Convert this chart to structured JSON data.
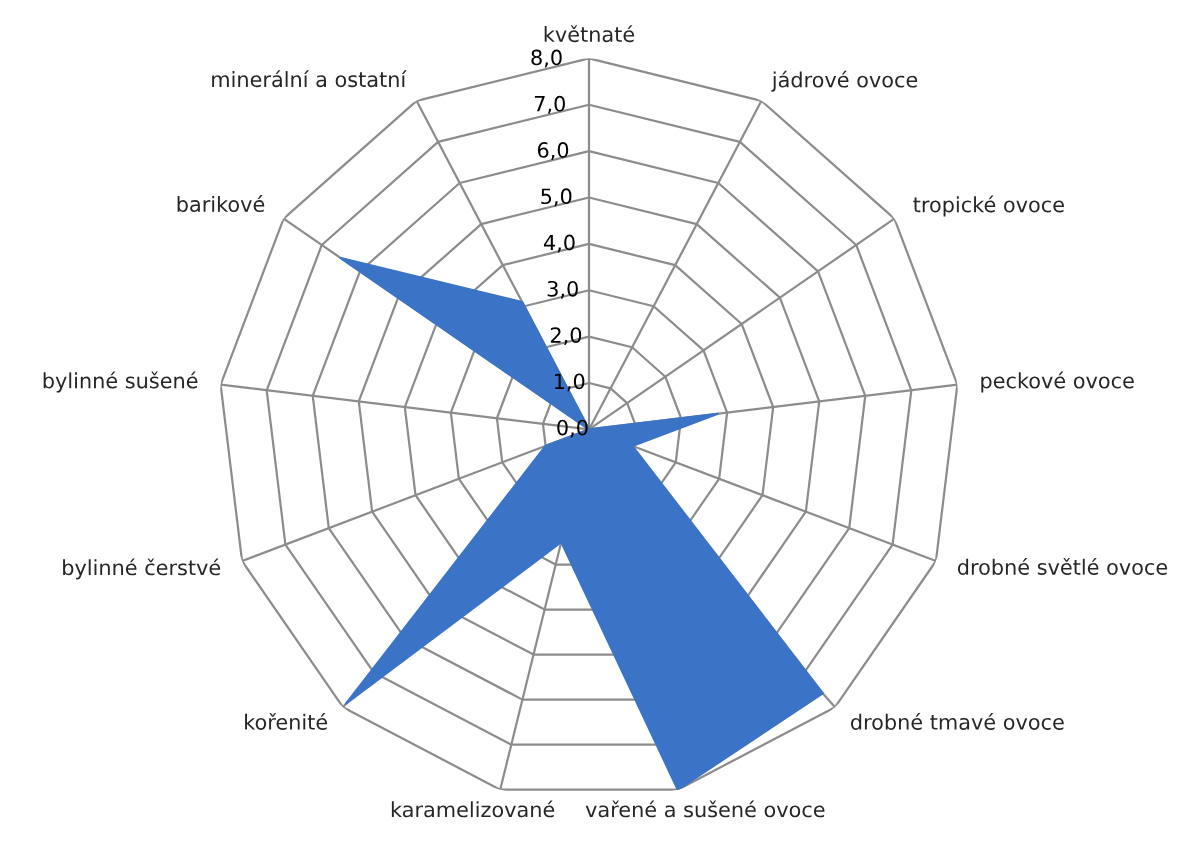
{
  "chart_data": {
    "type": "radar",
    "categories": [
      "květnaté",
      "jádrové ovoce",
      "tropické ovoce",
      "peckové ovoce",
      "drobné světlé ovoce",
      "drobné tmavé ovoce",
      "vařené a sušené ovoce",
      "karamelizované",
      "kořenité",
      "bylinné čerstvé",
      "bylinné sušené",
      "barikové",
      "minerální a ostatní"
    ],
    "series": [
      {
        "color": "#3b74c6",
        "values": [
          0,
          0,
          0,
          2.8,
          1.0,
          7.6,
          8.0,
          2.5,
          7.9,
          1.0,
          0,
          6.5,
          3.1
        ]
      }
    ],
    "ylim": [
      0,
      8
    ],
    "yticks": [
      {
        "value": 0,
        "label": "0,0"
      },
      {
        "value": 1,
        "label": "1,0"
      },
      {
        "value": 2,
        "label": "2,0"
      },
      {
        "value": 3,
        "label": "3,0"
      },
      {
        "value": 4,
        "label": "4,0"
      },
      {
        "value": 5,
        "label": "5,0"
      },
      {
        "value": 6,
        "label": "6,0"
      },
      {
        "value": 7,
        "label": "7,0"
      },
      {
        "value": 8,
        "label": "8,0"
      }
    ],
    "grid": true,
    "legend": false
  }
}
